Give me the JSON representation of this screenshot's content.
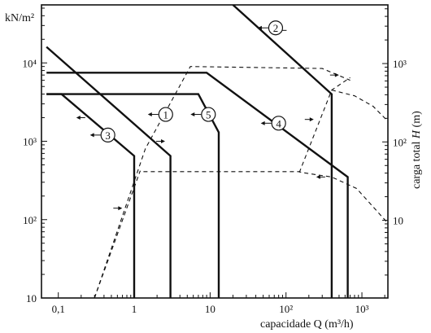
{
  "chart_data": {
    "type": "line",
    "x_axis": {
      "label": "capacidade Q (m³/h)",
      "scale": "log",
      "range": [
        0.06,
        2200
      ],
      "ticks": [
        {
          "value": 0.1,
          "label": "0,1"
        },
        {
          "value": 1,
          "label": "1"
        },
        {
          "value": 10,
          "label": "10"
        },
        {
          "value": 100,
          "label": "10²"
        },
        {
          "value": 1000,
          "label": "10³"
        }
      ]
    },
    "y_axis_left": {
      "unit_label": "kN/m²",
      "scale": "log",
      "range": [
        10,
        55000
      ],
      "ticks": [
        {
          "value": 10,
          "label": "10"
        },
        {
          "value": 100,
          "label": "10²"
        },
        {
          "value": 1000,
          "label": "10³"
        },
        {
          "value": 10000,
          "label": "10⁴"
        }
      ]
    },
    "y_axis_right": {
      "label_prefix": "carga total ",
      "label_italic": "H",
      "label_suffix": " (m)",
      "scale": "log",
      "ticks": [
        {
          "value": 10,
          "label": "10"
        },
        {
          "value": 100,
          "label": "10²"
        },
        {
          "value": 1000,
          "label": "10³"
        }
      ]
    },
    "series": [
      {
        "id": "1",
        "points": [
          [
            0.07,
            16000
          ],
          [
            3,
            650
          ],
          [
            3,
            10
          ]
        ],
        "label_pos": [
          2.6,
          2200
        ],
        "arrow_dir": "left"
      },
      {
        "id": "2",
        "points": [
          [
            20,
            55000
          ],
          [
            400,
            4000
          ],
          [
            400,
            10
          ]
        ],
        "label_pos": [
          73,
          28000
        ],
        "arrow_dir": "left"
      },
      {
        "id": "3",
        "points": [
          [
            0.07,
            4000
          ],
          [
            0.11,
            4000
          ],
          [
            1,
            650
          ],
          [
            1,
            10
          ]
        ],
        "label_pos": [
          0.45,
          1200
        ],
        "arrow_dir": "left"
      },
      {
        "id": "4",
        "points": [
          [
            0.07,
            7500
          ],
          [
            9,
            7500
          ],
          [
            650,
            350
          ],
          [
            650,
            10
          ]
        ],
        "label_pos": [
          80,
          1700
        ],
        "arrow_dir": "left"
      },
      {
        "id": "5",
        "points": [
          [
            0.07,
            4000
          ],
          [
            7,
            4000
          ],
          [
            13,
            1300
          ],
          [
            13,
            10
          ]
        ],
        "label_pos": [
          9.5,
          2200
        ],
        "arrow_dir": "left"
      }
    ],
    "envelopes": [
      {
        "style": "dashed",
        "points": [
          [
            0.3,
            10
          ],
          [
            1.2,
            420
          ],
          [
            1.2,
            410
          ],
          [
            10,
            410
          ],
          [
            150,
            410
          ],
          [
            160,
            400
          ],
          [
            400,
            350
          ],
          [
            850,
            250
          ],
          [
            2200,
            90
          ]
        ]
      },
      {
        "style": "dashed",
        "points": [
          [
            0.3,
            10
          ],
          [
            1.4,
            800
          ],
          [
            5.5,
            9000
          ],
          [
            300,
            8500
          ],
          [
            700,
            6000
          ]
        ]
      },
      {
        "style": "dashed",
        "points": [
          [
            150,
            400
          ],
          [
            400,
            4500
          ],
          [
            700,
            6500
          ]
        ]
      },
      {
        "style": "dashed",
        "points": [
          [
            400,
            4500
          ],
          [
            800,
            3800
          ],
          [
            1400,
            2800
          ],
          [
            2200,
            1800
          ]
        ]
      }
    ],
    "flow_arrows": [
      {
        "at": [
          0.2,
          2000
        ],
        "dir": "left"
      },
      {
        "at": [
          2.2,
          1000
        ],
        "dir": "right"
      },
      {
        "at": [
          0.6,
          140
        ],
        "dir": "right"
      },
      {
        "at": [
          90,
          26000
        ],
        "dir": "left"
      },
      {
        "at": [
          200,
          1900
        ],
        "dir": "right"
      },
      {
        "at": [
          290,
          350
        ],
        "dir": "left"
      },
      {
        "at": [
          430,
          7000
        ],
        "dir": "right"
      }
    ]
  }
}
